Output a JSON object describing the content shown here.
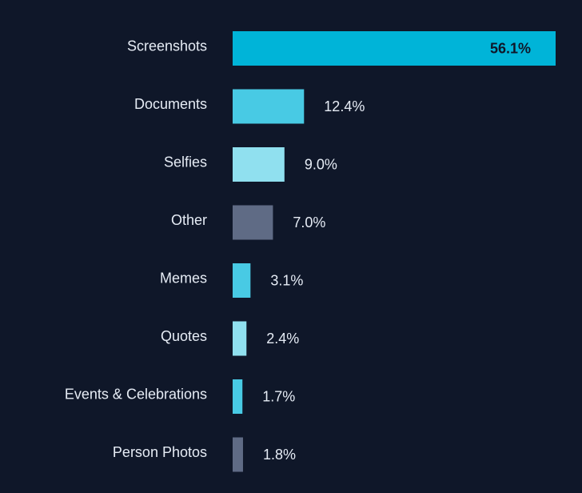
{
  "chart_data": {
    "type": "bar",
    "orientation": "horizontal",
    "title": "",
    "xlabel": "",
    "ylabel": "",
    "xlim": [
      0,
      56.1
    ],
    "grid": false,
    "legend": "none",
    "categories": [
      "Screenshots",
      "Documents",
      "Selfies",
      "Other",
      "Memes",
      "Quotes",
      "Events & Celebrations",
      "Person Photos"
    ],
    "values": [
      56.1,
      12.4,
      9.0,
      7.0,
      3.1,
      2.4,
      1.7,
      1.8
    ],
    "value_labels": [
      "56.1%",
      "12.4%",
      "9.0%",
      "7.0%",
      "3.1%",
      "2.4%",
      "1.7%",
      "1.8%"
    ],
    "bar_colors": [
      "#00b4d8",
      "#48cae4",
      "#90e0ef",
      "#5f6b85",
      "#48cae4",
      "#90e0ef",
      "#48cae4",
      "#5f6b85"
    ],
    "background": "#0f1729",
    "label_color": "#e6ecf5",
    "inside_label_color": "#0f1729"
  }
}
